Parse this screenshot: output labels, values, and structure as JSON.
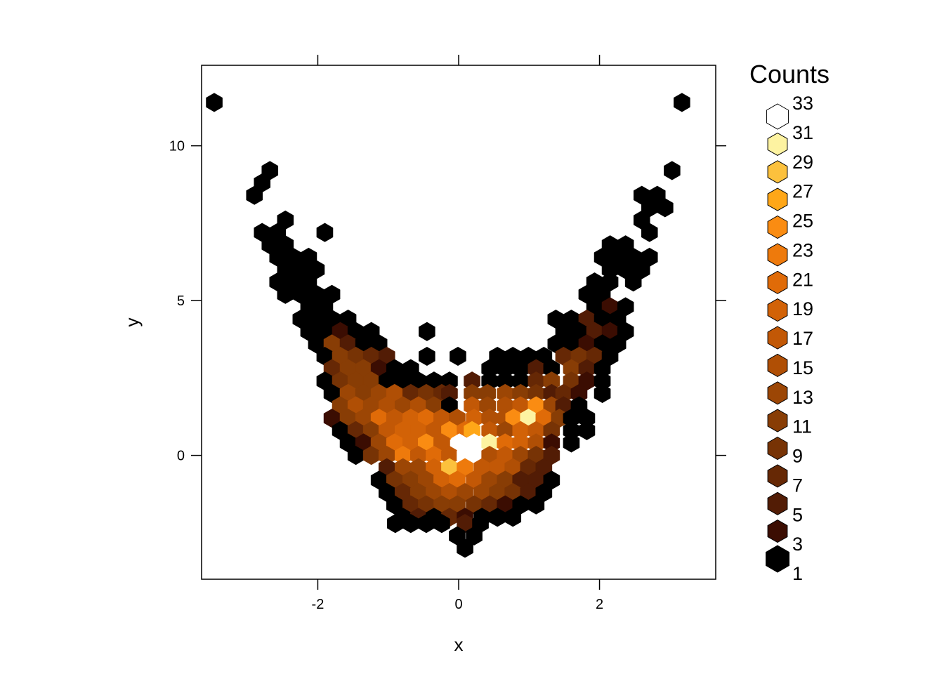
{
  "chart_data": {
    "type": "heatmap",
    "subtype": "hexbin",
    "xlabel": "x",
    "ylabel": "y",
    "xlim": [
      -3.65,
      3.65
    ],
    "ylim": [
      -4.0,
      12.6
    ],
    "x_ticks": [
      -2,
      0,
      2
    ],
    "y_ticks": [
      0,
      5,
      10
    ],
    "x_tick_labels": [
      "-2",
      "0",
      "2"
    ],
    "y_tick_labels": [
      "0",
      "5",
      "10"
    ],
    "legend": {
      "title": "Counts",
      "position": "right",
      "levels": [
        1,
        3,
        5,
        7,
        9,
        11,
        13,
        15,
        17,
        19,
        21,
        23,
        25,
        27,
        29,
        31,
        33
      ],
      "labels": [
        "33",
        "31",
        "29",
        "27",
        "25",
        "23",
        "21",
        "19",
        "17",
        "15",
        "13",
        "11",
        "9",
        "7",
        "5",
        "3",
        "1"
      ],
      "colors": [
        "#000000",
        "#3b0d02",
        "#521c05",
        "#662805",
        "#773305",
        "#883d05",
        "#9c4605",
        "#b04f05",
        "#c25806",
        "#d26207",
        "#e06b08",
        "#ee7a0c",
        "#fa8c12",
        "#ffa718",
        "#fcc13d",
        "#fdf3a1",
        "#ffffff"
      ]
    },
    "hex_width": 0.22,
    "bins": [
      [
        -3.47,
        11.4,
        1
      ],
      [
        3.17,
        11.4,
        1
      ],
      [
        -2.68,
        9.2,
        1
      ],
      [
        3.03,
        9.2,
        1
      ],
      [
        -2.79,
        8.8,
        1
      ],
      [
        -2.9,
        8.4,
        1
      ],
      [
        2.6,
        8.4,
        1
      ],
      [
        2.82,
        8.4,
        1
      ],
      [
        2.71,
        8.0,
        1
      ],
      [
        2.93,
        8.0,
        1
      ],
      [
        -2.46,
        7.6,
        1
      ],
      [
        2.6,
        7.6,
        1
      ],
      [
        -2.79,
        7.2,
        1
      ],
      [
        -2.57,
        7.2,
        1
      ],
      [
        -1.9,
        7.2,
        1
      ],
      [
        2.71,
        7.2,
        1
      ],
      [
        -2.68,
        6.8,
        1
      ],
      [
        -2.46,
        6.8,
        1
      ],
      [
        2.15,
        6.8,
        1
      ],
      [
        2.37,
        6.8,
        1
      ],
      [
        -2.57,
        6.4,
        1
      ],
      [
        -2.35,
        6.4,
        1
      ],
      [
        -2.13,
        6.4,
        1
      ],
      [
        2.04,
        6.4,
        1
      ],
      [
        2.26,
        6.4,
        1
      ],
      [
        2.48,
        6.4,
        1
      ],
      [
        2.71,
        6.4,
        1
      ],
      [
        -2.46,
        6.0,
        1
      ],
      [
        -2.24,
        6.0,
        1
      ],
      [
        -2.02,
        6.0,
        1
      ],
      [
        2.15,
        6.0,
        1
      ],
      [
        2.37,
        6.0,
        1
      ],
      [
        2.6,
        6.0,
        1
      ],
      [
        -2.57,
        5.6,
        1
      ],
      [
        -2.35,
        5.6,
        1
      ],
      [
        -2.13,
        5.6,
        1
      ],
      [
        1.93,
        5.6,
        1
      ],
      [
        2.15,
        5.6,
        1
      ],
      [
        2.48,
        5.6,
        1
      ],
      [
        -2.46,
        5.2,
        1
      ],
      [
        -2.24,
        5.2,
        1
      ],
      [
        -2.02,
        5.2,
        1
      ],
      [
        -1.8,
        5.2,
        1
      ],
      [
        1.82,
        5.2,
        1
      ],
      [
        2.04,
        5.2,
        1
      ],
      [
        -2.13,
        4.8,
        1
      ],
      [
        -1.9,
        4.8,
        1
      ],
      [
        1.93,
        4.8,
        1
      ],
      [
        2.15,
        4.8,
        3
      ],
      [
        2.37,
        4.8,
        1
      ],
      [
        -2.24,
        4.4,
        1
      ],
      [
        -2.02,
        4.4,
        1
      ],
      [
        -1.8,
        4.4,
        1
      ],
      [
        -1.57,
        4.4,
        1
      ],
      [
        1.38,
        4.4,
        1
      ],
      [
        1.6,
        4.4,
        1
      ],
      [
        1.82,
        4.4,
        5
      ],
      [
        2.04,
        4.4,
        1
      ],
      [
        2.26,
        4.4,
        1
      ],
      [
        -2.13,
        4.0,
        1
      ],
      [
        -1.9,
        4.0,
        1
      ],
      [
        -1.68,
        4.0,
        3
      ],
      [
        -1.46,
        4.0,
        1
      ],
      [
        -1.24,
        4.0,
        1
      ],
      [
        -0.45,
        4.0,
        1
      ],
      [
        1.49,
        4.0,
        1
      ],
      [
        1.71,
        4.0,
        1
      ],
      [
        1.93,
        4.0,
        5
      ],
      [
        2.15,
        4.0,
        3
      ],
      [
        2.37,
        4.0,
        1
      ],
      [
        -2.02,
        3.6,
        1
      ],
      [
        -1.8,
        3.6,
        11
      ],
      [
        -1.57,
        3.6,
        5
      ],
      [
        -1.35,
        3.6,
        1
      ],
      [
        -1.13,
        3.6,
        1
      ],
      [
        1.38,
        3.6,
        1
      ],
      [
        1.6,
        3.6,
        1
      ],
      [
        1.82,
        3.6,
        3
      ],
      [
        2.04,
        3.6,
        1
      ],
      [
        2.26,
        3.6,
        1
      ],
      [
        -1.9,
        3.2,
        1
      ],
      [
        -1.68,
        3.2,
        11
      ],
      [
        -1.46,
        3.2,
        9
      ],
      [
        -1.24,
        3.2,
        7
      ],
      [
        -1.02,
        3.2,
        5
      ],
      [
        -0.45,
        3.2,
        1
      ],
      [
        -0.01,
        3.2,
        1
      ],
      [
        0.55,
        3.2,
        1
      ],
      [
        0.77,
        3.2,
        1
      ],
      [
        0.99,
        3.2,
        1
      ],
      [
        1.21,
        3.2,
        1
      ],
      [
        1.49,
        3.2,
        7
      ],
      [
        1.71,
        3.2,
        9
      ],
      [
        1.93,
        3.2,
        7
      ],
      [
        2.15,
        3.2,
        1
      ],
      [
        -1.8,
        2.8,
        7
      ],
      [
        -1.57,
        2.8,
        11
      ],
      [
        -1.35,
        2.8,
        11
      ],
      [
        -1.13,
        2.8,
        3
      ],
      [
        -0.91,
        2.8,
        1
      ],
      [
        -0.68,
        2.8,
        1
      ],
      [
        0.44,
        2.8,
        1
      ],
      [
        0.66,
        2.8,
        1
      ],
      [
        0.88,
        2.8,
        1
      ],
      [
        1.1,
        2.8,
        5
      ],
      [
        1.32,
        2.8,
        1
      ],
      [
        1.6,
        2.8,
        11
      ],
      [
        1.82,
        2.8,
        5
      ],
      [
        2.04,
        2.8,
        1
      ],
      [
        -1.9,
        2.4,
        1
      ],
      [
        -1.68,
        2.4,
        9
      ],
      [
        -1.46,
        2.4,
        11
      ],
      [
        -1.24,
        2.4,
        11
      ],
      [
        -1.02,
        2.4,
        1
      ],
      [
        -0.79,
        2.4,
        1
      ],
      [
        -0.57,
        2.4,
        1
      ],
      [
        -0.35,
        2.4,
        1
      ],
      [
        -0.13,
        2.4,
        1
      ],
      [
        0.19,
        2.4,
        5
      ],
      [
        0.44,
        2.4,
        1
      ],
      [
        0.66,
        2.4,
        1
      ],
      [
        0.88,
        2.4,
        1
      ],
      [
        1.1,
        2.4,
        7
      ],
      [
        1.32,
        2.4,
        11
      ],
      [
        1.6,
        2.4,
        9
      ],
      [
        1.82,
        2.4,
        3
      ],
      [
        2.04,
        2.4,
        1
      ],
      [
        -1.8,
        2.0,
        1
      ],
      [
        -1.57,
        2.0,
        13
      ],
      [
        -1.35,
        2.0,
        11
      ],
      [
        -1.13,
        2.0,
        13
      ],
      [
        -0.91,
        2.0,
        15
      ],
      [
        -0.68,
        2.0,
        7
      ],
      [
        -0.46,
        2.0,
        9
      ],
      [
        -0.24,
        2.0,
        7
      ],
      [
        -0.13,
        2.0,
        5
      ],
      [
        0.19,
        2.0,
        11
      ],
      [
        0.41,
        2.0,
        11
      ],
      [
        0.66,
        2.0,
        13
      ],
      [
        0.88,
        2.0,
        11
      ],
      [
        1.1,
        2.0,
        9
      ],
      [
        1.32,
        2.0,
        5
      ],
      [
        1.49,
        2.0,
        7
      ],
      [
        1.71,
        2.0,
        3
      ],
      [
        2.04,
        2.0,
        1
      ],
      [
        -1.68,
        1.6,
        11
      ],
      [
        -1.46,
        1.6,
        15
      ],
      [
        -1.24,
        1.6,
        13
      ],
      [
        -1.02,
        1.6,
        15
      ],
      [
        -0.79,
        1.6,
        13
      ],
      [
        -0.57,
        1.6,
        15
      ],
      [
        -0.35,
        1.6,
        11
      ],
      [
        -0.13,
        1.6,
        1
      ],
      [
        0.19,
        1.6,
        17
      ],
      [
        0.41,
        1.6,
        13
      ],
      [
        0.66,
        1.6,
        15
      ],
      [
        0.88,
        1.6,
        17
      ],
      [
        1.1,
        1.6,
        25
      ],
      [
        1.32,
        1.6,
        13
      ],
      [
        1.49,
        1.6,
        5
      ],
      [
        1.71,
        1.6,
        1
      ],
      [
        -1.8,
        1.2,
        3
      ],
      [
        -1.57,
        1.2,
        11
      ],
      [
        -1.35,
        1.2,
        13
      ],
      [
        -1.13,
        1.2,
        21
      ],
      [
        -0.91,
        1.2,
        17
      ],
      [
        -0.68,
        1.2,
        19
      ],
      [
        -0.46,
        1.2,
        21
      ],
      [
        -0.24,
        1.2,
        17
      ],
      [
        -0.02,
        1.2,
        15
      ],
      [
        0.22,
        1.2,
        19
      ],
      [
        0.44,
        1.2,
        15
      ],
      [
        0.66,
        1.2,
        15
      ],
      [
        0.78,
        1.2,
        25
      ],
      [
        0.99,
        1.2,
        31
      ],
      [
        1.21,
        1.2,
        21
      ],
      [
        1.43,
        1.2,
        11
      ],
      [
        1.6,
        1.2,
        1
      ],
      [
        1.82,
        1.2,
        1
      ],
      [
        -1.68,
        0.8,
        1
      ],
      [
        -1.46,
        0.8,
        7
      ],
      [
        -1.24,
        0.8,
        11
      ],
      [
        -1.02,
        0.8,
        17
      ],
      [
        -0.79,
        0.8,
        19
      ],
      [
        -0.57,
        0.8,
        19
      ],
      [
        -0.35,
        0.8,
        17
      ],
      [
        -0.13,
        0.8,
        25
      ],
      [
        0.09,
        0.8,
        21
      ],
      [
        0.19,
        0.8,
        27
      ],
      [
        0.44,
        0.8,
        17
      ],
      [
        0.66,
        0.8,
        13
      ],
      [
        0.88,
        0.8,
        19
      ],
      [
        1.1,
        0.8,
        17
      ],
      [
        1.32,
        0.8,
        9
      ],
      [
        1.6,
        0.8,
        1
      ],
      [
        1.82,
        0.8,
        1
      ],
      [
        -1.57,
        0.4,
        1
      ],
      [
        -1.35,
        0.4,
        3
      ],
      [
        -1.13,
        0.4,
        13
      ],
      [
        -0.91,
        0.4,
        21
      ],
      [
        -0.68,
        0.4,
        19
      ],
      [
        -0.46,
        0.4,
        25
      ],
      [
        -0.24,
        0.4,
        17
      ],
      [
        0.01,
        0.4,
        33
      ],
      [
        0.22,
        0.4,
        33
      ],
      [
        0.44,
        0.4,
        31
      ],
      [
        0.66,
        0.4,
        21
      ],
      [
        0.88,
        0.4,
        19
      ],
      [
        1.1,
        0.4,
        15
      ],
      [
        1.32,
        0.4,
        3
      ],
      [
        1.6,
        0.4,
        1
      ],
      [
        -1.46,
        0.0,
        1
      ],
      [
        -1.24,
        0.0,
        9
      ],
      [
        -1.02,
        0.0,
        13
      ],
      [
        -0.79,
        0.0,
        23
      ],
      [
        -0.57,
        0.0,
        17
      ],
      [
        -0.35,
        0.0,
        21
      ],
      [
        -0.13,
        0.0,
        17
      ],
      [
        0.09,
        0.0,
        33
      ],
      [
        0.22,
        0.0,
        33
      ],
      [
        0.44,
        0.0,
        15
      ],
      [
        0.66,
        0.0,
        17
      ],
      [
        0.88,
        0.0,
        13
      ],
      [
        1.1,
        0.0,
        9
      ],
      [
        1.32,
        0.0,
        5
      ],
      [
        -1.02,
        -0.4,
        5
      ],
      [
        -0.79,
        -0.4,
        13
      ],
      [
        -0.57,
        -0.4,
        13
      ],
      [
        -0.35,
        -0.4,
        19
      ],
      [
        -0.13,
        -0.4,
        29
      ],
      [
        0.09,
        -0.4,
        23
      ],
      [
        0.33,
        -0.4,
        17
      ],
      [
        0.55,
        -0.4,
        17
      ],
      [
        0.77,
        -0.4,
        15
      ],
      [
        0.99,
        -0.4,
        7
      ],
      [
        1.21,
        -0.4,
        5
      ],
      [
        -1.13,
        -0.8,
        1
      ],
      [
        -0.91,
        -0.8,
        9
      ],
      [
        -0.68,
        -0.8,
        11
      ],
      [
        -0.46,
        -0.8,
        13
      ],
      [
        -0.24,
        -0.8,
        19
      ],
      [
        -0.02,
        -0.8,
        21
      ],
      [
        0.22,
        -0.8,
        17
      ],
      [
        0.44,
        -0.8,
        13
      ],
      [
        0.66,
        -0.8,
        11
      ],
      [
        0.88,
        -0.8,
        5
      ],
      [
        1.1,
        -0.8,
        5
      ],
      [
        1.32,
        -0.8,
        1
      ],
      [
        -1.02,
        -1.2,
        1
      ],
      [
        -0.79,
        -1.2,
        7
      ],
      [
        -0.57,
        -1.2,
        11
      ],
      [
        -0.35,
        -1.2,
        13
      ],
      [
        -0.13,
        -1.2,
        15
      ],
      [
        0.09,
        -1.2,
        13
      ],
      [
        0.33,
        -1.2,
        13
      ],
      [
        0.55,
        -1.2,
        11
      ],
      [
        0.77,
        -1.2,
        9
      ],
      [
        0.99,
        -1.2,
        5
      ],
      [
        1.21,
        -1.2,
        1
      ],
      [
        -0.91,
        -1.6,
        1
      ],
      [
        -0.68,
        -1.6,
        7
      ],
      [
        -0.46,
        -1.6,
        9
      ],
      [
        -0.24,
        -1.6,
        11
      ],
      [
        -0.02,
        -1.6,
        11
      ],
      [
        0.22,
        -1.6,
        9
      ],
      [
        0.44,
        -1.6,
        7
      ],
      [
        0.66,
        -1.6,
        3
      ],
      [
        0.88,
        -1.6,
        1
      ],
      [
        1.1,
        -1.6,
        1
      ],
      [
        -0.79,
        -2.0,
        1
      ],
      [
        -0.57,
        -2.0,
        5
      ],
      [
        -0.35,
        -2.0,
        1
      ],
      [
        -0.13,
        -2.0,
        7
      ],
      [
        0.09,
        -2.0,
        3
      ],
      [
        0.33,
        -2.0,
        1
      ],
      [
        0.55,
        -2.0,
        1
      ],
      [
        0.77,
        -2.0,
        1
      ],
      [
        -0.9,
        -2.2,
        1
      ],
      [
        -0.68,
        -2.2,
        1
      ],
      [
        -0.46,
        -2.2,
        1
      ],
      [
        -0.24,
        -2.2,
        1
      ],
      [
        0.09,
        -2.2,
        5
      ],
      [
        0.31,
        -2.2,
        1
      ],
      [
        -0.02,
        -2.6,
        1
      ],
      [
        0.22,
        -2.6,
        1
      ],
      [
        0.09,
        -3.0,
        1
      ]
    ]
  }
}
